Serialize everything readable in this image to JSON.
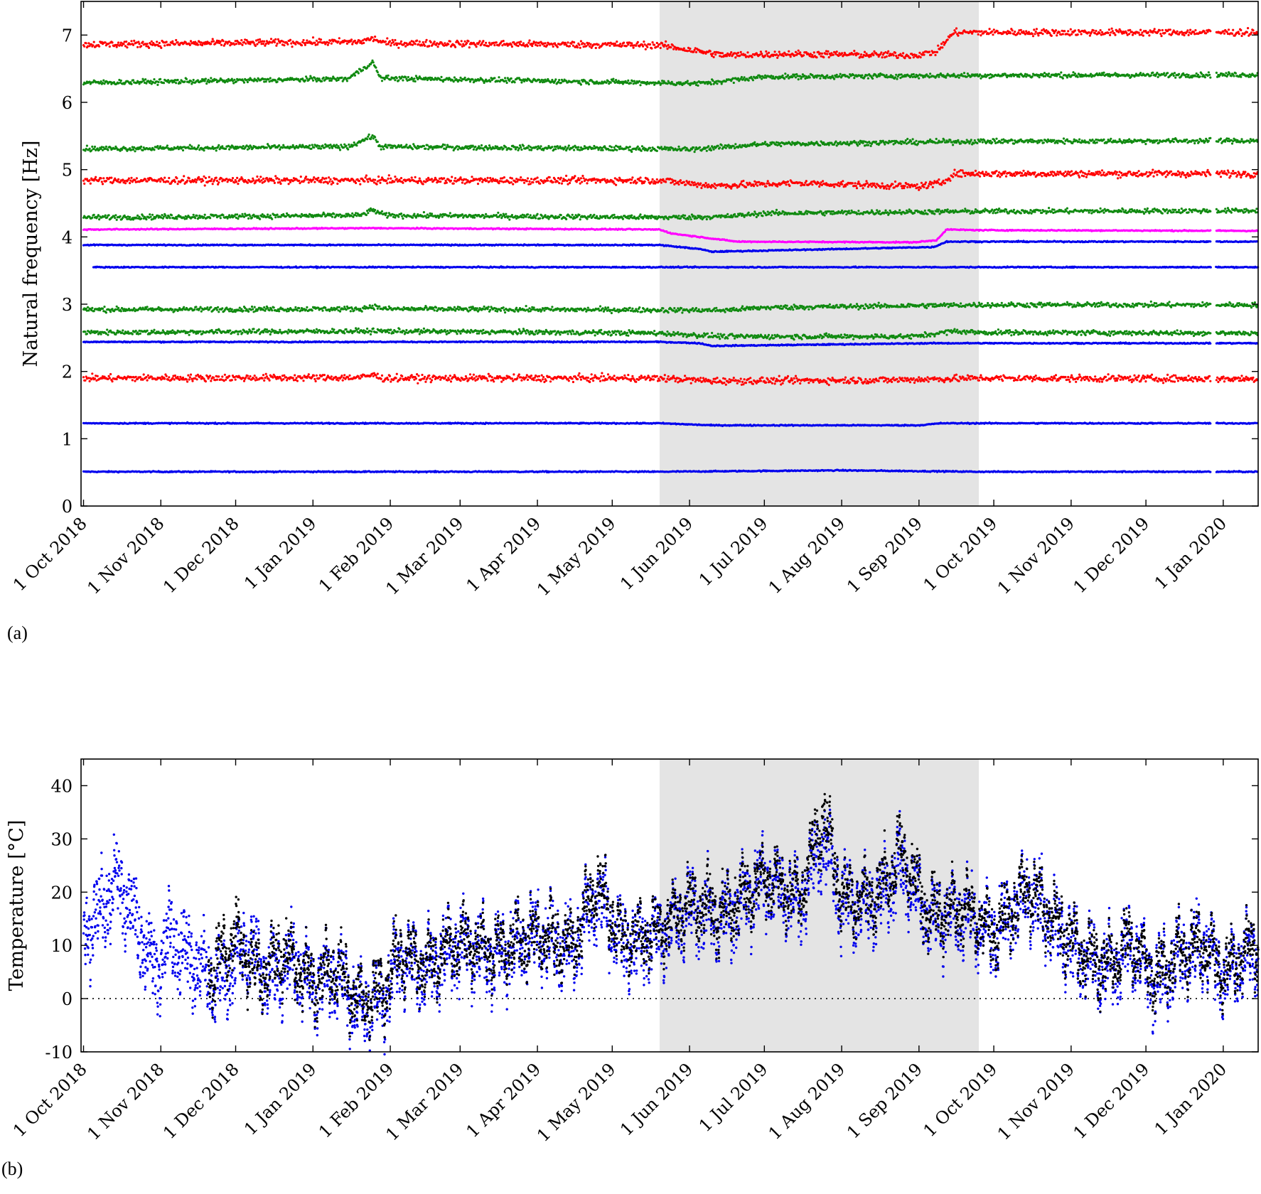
{
  "chart_data": [
    {
      "panel_label": "(a)",
      "type": "scatter",
      "title": "",
      "xlabel": "",
      "ylabel": "Natural frequency [Hz]",
      "x_ticks": [
        "1 Oct 2018",
        "1 Nov 2018",
        "1 Dec 2018",
        "1 Jan 2019",
        "1 Feb 2019",
        "1 Mar 2019",
        "1 Apr 2019",
        "1 May 2019",
        "1 Jun 2019",
        "1 Jul 2019",
        "1 Aug 2019",
        "1 Sep 2019",
        "1 Oct 2019",
        "1 Nov 2019",
        "1 Dec 2019",
        "1 Jan 2020"
      ],
      "xlim": [
        "2018-09-30",
        "2020-01-15"
      ],
      "ylim": [
        0,
        7.5
      ],
      "y_ticks": [
        0,
        1,
        2,
        3,
        4,
        5,
        6,
        7
      ],
      "shaded_interval": [
        "2019-05-20",
        "2019-09-25"
      ],
      "series_colors": {
        "red": "#ff0000",
        "green": "#108a10",
        "blue": "#0000ee",
        "magenta": "#ff00ff"
      },
      "series": [
        {
          "color": "blue",
          "points": [
            [
              "2018-10-01",
              0.51
            ],
            [
              "2019-05-20",
              0.51
            ],
            [
              "2019-08-01",
              0.53
            ],
            [
              "2019-09-25",
              0.51
            ],
            [
              "2020-01-15",
              0.51
            ]
          ]
        },
        {
          "color": "blue",
          "points": [
            [
              "2018-10-01",
              1.23
            ],
            [
              "2019-05-20",
              1.23
            ],
            [
              "2019-06-10",
              1.2
            ],
            [
              "2019-09-01",
              1.2
            ],
            [
              "2019-09-10",
              1.23
            ],
            [
              "2020-01-15",
              1.23
            ]
          ]
        },
        {
          "color": "red",
          "points": [
            [
              "2018-10-01",
              1.9
            ],
            [
              "2019-01-20",
              1.91
            ],
            [
              "2019-01-25",
              1.95
            ],
            [
              "2019-01-29",
              1.9
            ],
            [
              "2019-05-20",
              1.9
            ],
            [
              "2019-06-10",
              1.86
            ],
            [
              "2019-08-15",
              1.87
            ],
            [
              "2019-09-25",
              1.9
            ],
            [
              "2020-01-15",
              1.89
            ]
          ]
        },
        {
          "color": "blue",
          "points": [
            [
              "2018-10-01",
              2.44
            ],
            [
              "2019-05-20",
              2.44
            ],
            [
              "2019-06-05",
              2.42
            ],
            [
              "2019-06-10",
              2.38
            ],
            [
              "2019-09-07",
              2.42
            ],
            [
              "2020-01-15",
              2.42
            ]
          ]
        },
        {
          "color": "green",
          "points": [
            [
              "2018-10-01",
              2.58
            ],
            [
              "2019-01-25",
              2.6
            ],
            [
              "2019-05-20",
              2.57
            ],
            [
              "2019-06-15",
              2.52
            ],
            [
              "2019-08-30",
              2.52
            ],
            [
              "2019-09-15",
              2.6
            ],
            [
              "2019-09-25",
              2.58
            ],
            [
              "2020-01-15",
              2.57
            ]
          ]
        },
        {
          "color": "green",
          "points": [
            [
              "2018-10-01",
              2.92
            ],
            [
              "2019-01-20",
              2.93
            ],
            [
              "2019-01-25",
              2.97
            ],
            [
              "2019-01-30",
              2.93
            ],
            [
              "2019-06-15",
              2.91
            ],
            [
              "2019-07-01",
              2.95
            ],
            [
              "2019-09-25",
              2.99
            ],
            [
              "2020-01-15",
              2.99
            ]
          ]
        },
        {
          "color": "blue",
          "points": [
            [
              "2018-10-05",
              3.55
            ],
            [
              "2019-05-20",
              3.55
            ],
            [
              "2019-09-10",
              3.55
            ],
            [
              "2020-01-15",
              3.55
            ]
          ]
        },
        {
          "color": "blue",
          "points": [
            [
              "2018-10-01",
              3.88
            ],
            [
              "2019-05-20",
              3.88
            ],
            [
              "2019-06-05",
              3.82
            ],
            [
              "2019-06-10",
              3.78
            ],
            [
              "2019-09-07",
              3.85
            ],
            [
              "2019-09-12",
              3.93
            ],
            [
              "2020-01-15",
              3.93
            ]
          ]
        },
        {
          "color": "magenta",
          "points": [
            [
              "2018-10-01",
              4.11
            ],
            [
              "2019-01-25",
              4.13
            ],
            [
              "2019-05-20",
              4.11
            ],
            [
              "2019-05-25",
              4.05
            ],
            [
              "2019-06-20",
              3.93
            ],
            [
              "2019-08-30",
              3.92
            ],
            [
              "2019-09-08",
              3.95
            ],
            [
              "2019-09-12",
              4.11
            ],
            [
              "2019-09-25",
              4.1
            ],
            [
              "2020-01-15",
              4.09
            ]
          ]
        },
        {
          "color": "green",
          "points": [
            [
              "2018-10-01",
              4.29
            ],
            [
              "2019-01-20",
              4.32
            ],
            [
              "2019-01-25",
              4.4
            ],
            [
              "2019-01-30",
              4.32
            ],
            [
              "2019-05-20",
              4.29
            ],
            [
              "2019-06-15",
              4.3
            ],
            [
              "2019-07-01",
              4.35
            ],
            [
              "2019-09-25",
              4.38
            ],
            [
              "2020-01-15",
              4.39
            ]
          ]
        },
        {
          "color": "red",
          "points": [
            [
              "2018-10-01",
              4.84
            ],
            [
              "2019-05-20",
              4.84
            ],
            [
              "2019-06-10",
              4.76
            ],
            [
              "2019-07-15",
              4.8
            ],
            [
              "2019-09-01",
              4.75
            ],
            [
              "2019-09-10",
              4.8
            ],
            [
              "2019-09-15",
              4.94
            ],
            [
              "2020-01-15",
              4.94
            ]
          ]
        },
        {
          "color": "green",
          "points": [
            [
              "2018-10-01",
              5.31
            ],
            [
              "2019-01-15",
              5.34
            ],
            [
              "2019-01-25",
              5.5
            ],
            [
              "2019-01-28",
              5.34
            ],
            [
              "2019-05-20",
              5.31
            ],
            [
              "2019-06-01",
              5.3
            ],
            [
              "2019-07-01",
              5.38
            ],
            [
              "2019-09-25",
              5.42
            ],
            [
              "2020-01-15",
              5.43
            ]
          ]
        },
        {
          "color": "green",
          "points": [
            [
              "2018-10-01",
              6.29
            ],
            [
              "2019-01-15",
              6.35
            ],
            [
              "2019-01-25",
              6.6
            ],
            [
              "2019-01-28",
              6.36
            ],
            [
              "2019-05-20",
              6.29
            ],
            [
              "2019-06-05",
              6.28
            ],
            [
              "2019-07-01",
              6.38
            ],
            [
              "2019-09-25",
              6.4
            ],
            [
              "2020-01-15",
              6.41
            ]
          ]
        },
        {
          "color": "red",
          "points": [
            [
              "2018-10-01",
              6.86
            ],
            [
              "2019-01-20",
              6.9
            ],
            [
              "2019-01-25",
              6.95
            ],
            [
              "2019-01-30",
              6.88
            ],
            [
              "2019-05-20",
              6.85
            ],
            [
              "2019-06-01",
              6.78
            ],
            [
              "2019-06-15",
              6.7
            ],
            [
              "2019-07-10",
              6.72
            ],
            [
              "2019-08-30",
              6.7
            ],
            [
              "2019-09-08",
              6.75
            ],
            [
              "2019-09-15",
              7.04
            ],
            [
              "2020-01-15",
              7.04
            ]
          ]
        }
      ]
    },
    {
      "panel_label": "(b)",
      "type": "scatter",
      "title": "",
      "xlabel": "",
      "ylabel": "Temperature [°C]",
      "x_ticks": [
        "1 Oct 2018",
        "1 Nov 2018",
        "1 Dec 2018",
        "1 Jan 2019",
        "1 Feb 2019",
        "1 Mar 2019",
        "1 Apr 2019",
        "1 May 2019",
        "1 Jun 2019",
        "1 Jul 2019",
        "1 Aug 2019",
        "1 Sep 2019",
        "1 Oct 2019",
        "1 Nov 2019",
        "1 Dec 2019",
        "1 Jan 2020"
      ],
      "xlim": [
        "2018-09-30",
        "2020-01-15"
      ],
      "ylim": [
        -10,
        45
      ],
      "y_ticks": [
        -10,
        0,
        10,
        20,
        30,
        40
      ],
      "reference_line": 0,
      "shaded_interval": [
        "2019-05-20",
        "2019-09-25"
      ],
      "series_colors": {
        "blue": "#0000ee",
        "black": "#000000"
      },
      "series": [
        {
          "color": "blue",
          "points": [
            [
              "2018-10-01",
              12
            ],
            [
              "2018-10-10",
              18
            ],
            [
              "2018-10-15",
              22
            ],
            [
              "2018-10-22",
              14
            ],
            [
              "2018-10-30",
              5
            ],
            [
              "2018-11-05",
              12
            ],
            [
              "2018-11-15",
              6
            ],
            [
              "2018-11-25",
              3
            ],
            [
              "2018-12-05",
              10
            ],
            [
              "2018-12-15",
              4
            ],
            [
              "2018-12-25",
              7
            ],
            [
              "2019-01-01",
              2
            ],
            [
              "2019-01-10",
              5
            ],
            [
              "2019-01-20",
              -2
            ],
            [
              "2019-01-30",
              1
            ],
            [
              "2019-02-05",
              8
            ],
            [
              "2019-02-15",
              5
            ],
            [
              "2019-03-01",
              10
            ],
            [
              "2019-03-15",
              8
            ],
            [
              "2019-04-01",
              12
            ],
            [
              "2019-04-15",
              9
            ],
            [
              "2019-04-25",
              20
            ],
            [
              "2019-05-05",
              10
            ],
            [
              "2019-05-20",
              12
            ],
            [
              "2019-06-01",
              17
            ],
            [
              "2019-06-15",
              15
            ],
            [
              "2019-07-01",
              22
            ],
            [
              "2019-07-15",
              18
            ],
            [
              "2019-07-25",
              30
            ],
            [
              "2019-08-01",
              18
            ],
            [
              "2019-08-15",
              18
            ],
            [
              "2019-08-25",
              25
            ],
            [
              "2019-09-05",
              15
            ],
            [
              "2019-09-20",
              16
            ],
            [
              "2019-10-01",
              12
            ],
            [
              "2019-10-15",
              20
            ],
            [
              "2019-10-25",
              14
            ],
            [
              "2019-11-05",
              8
            ],
            [
              "2019-11-15",
              5
            ],
            [
              "2019-11-25",
              10
            ],
            [
              "2019-12-05",
              3
            ],
            [
              "2019-12-15",
              8
            ],
            [
              "2019-12-25",
              10
            ],
            [
              "2020-01-01",
              4
            ],
            [
              "2020-01-15",
              10
            ]
          ]
        },
        {
          "color": "black",
          "points": [
            [
              "2018-11-20",
              4
            ],
            [
              "2018-12-01",
              12
            ],
            [
              "2018-12-10",
              4
            ],
            [
              "2018-12-20",
              9
            ],
            [
              "2019-01-01",
              3
            ],
            [
              "2019-01-10",
              6
            ],
            [
              "2019-01-20",
              -1
            ],
            [
              "2019-01-30",
              2
            ],
            [
              "2019-02-05",
              9
            ],
            [
              "2019-02-15",
              6
            ],
            [
              "2019-03-01",
              11
            ],
            [
              "2019-03-15",
              9
            ],
            [
              "2019-04-01",
              12
            ],
            [
              "2019-04-15",
              10
            ],
            [
              "2019-04-25",
              22
            ],
            [
              "2019-05-05",
              11
            ],
            [
              "2019-05-20",
              13
            ],
            [
              "2019-06-01",
              18
            ],
            [
              "2019-06-15",
              16
            ],
            [
              "2019-07-01",
              23
            ],
            [
              "2019-07-15",
              19
            ],
            [
              "2019-07-25",
              35
            ],
            [
              "2019-08-01",
              19
            ],
            [
              "2019-08-15",
              19
            ],
            [
              "2019-08-25",
              28
            ],
            [
              "2019-09-05",
              16
            ],
            [
              "2019-09-20",
              17
            ],
            [
              "2019-10-01",
              12
            ],
            [
              "2019-10-15",
              21
            ],
            [
              "2019-10-25",
              15
            ],
            [
              "2019-11-05",
              9
            ],
            [
              "2019-11-15",
              6
            ],
            [
              "2019-11-25",
              11
            ],
            [
              "2019-12-05",
              4
            ],
            [
              "2019-12-15",
              9
            ],
            [
              "2019-12-25",
              10
            ],
            [
              "2020-01-01",
              5
            ],
            [
              "2020-01-15",
              11
            ]
          ]
        }
      ]
    }
  ]
}
